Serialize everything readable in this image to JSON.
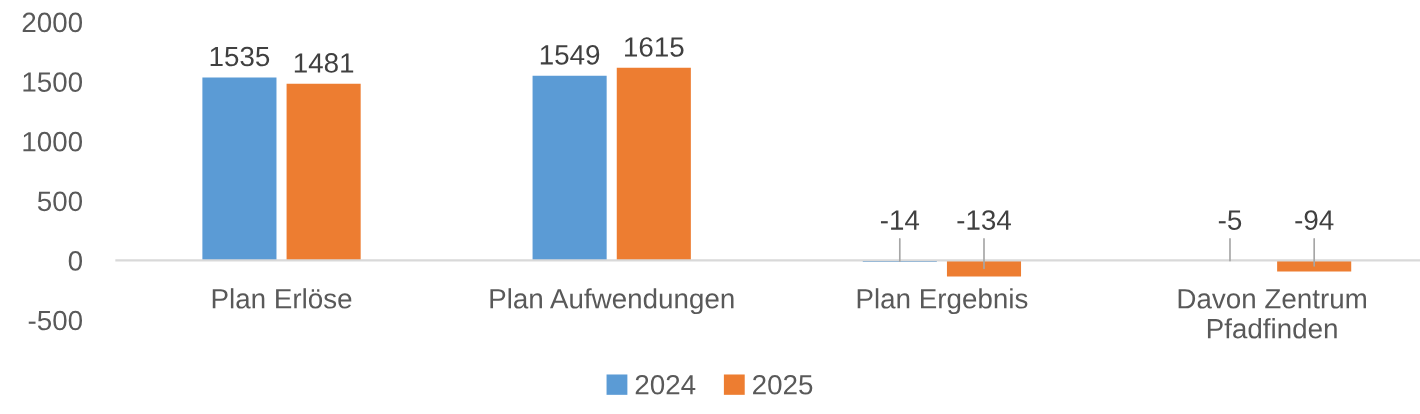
{
  "chart_data": {
    "type": "bar",
    "categories": [
      "Plan Erlöse",
      "Plan Aufwendungen",
      "Plan Ergebnis",
      "Davon Zentrum\nPfadfinden"
    ],
    "series": [
      {
        "name": "2024",
        "color": "#5b9bd5",
        "values": [
          1535,
          1549,
          -14,
          -5
        ]
      },
      {
        "name": "2025",
        "color": "#ed7d31",
        "values": [
          1481,
          1615,
          -134,
          -94
        ]
      }
    ],
    "ylim": [
      -500,
      2000
    ],
    "yticks": [
      -500,
      0,
      500,
      1000,
      1500,
      2000
    ],
    "legend": "bottom",
    "data_labels": true
  }
}
